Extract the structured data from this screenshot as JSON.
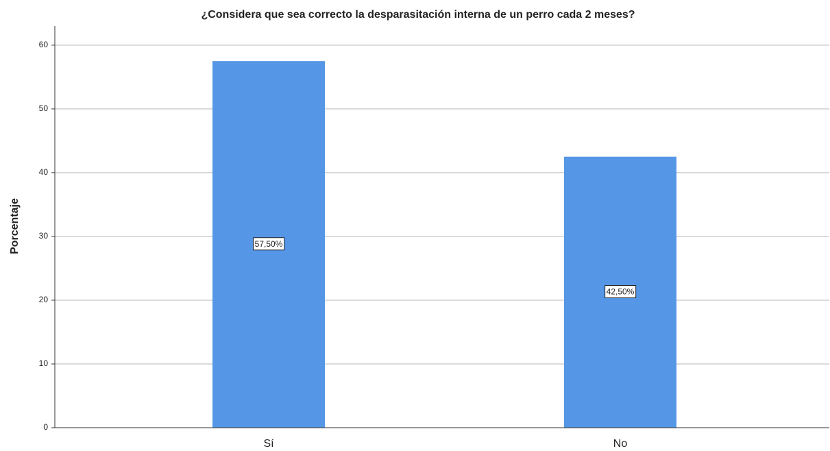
{
  "chart_data": {
    "type": "bar",
    "title": "¿Considera que sea correcto la desparasitación interna de un perro cada 2 meses?",
    "y_label": "Porcentaje",
    "categories": [
      "Sí",
      "No"
    ],
    "values": [
      57.5,
      42.5
    ],
    "value_labels": [
      "57,50%",
      "42,50%"
    ],
    "color": "#5596e6",
    "ylim": [
      0,
      63
    ],
    "yticks": [
      0,
      10,
      20,
      30,
      40,
      50,
      60
    ],
    "grid": true
  }
}
